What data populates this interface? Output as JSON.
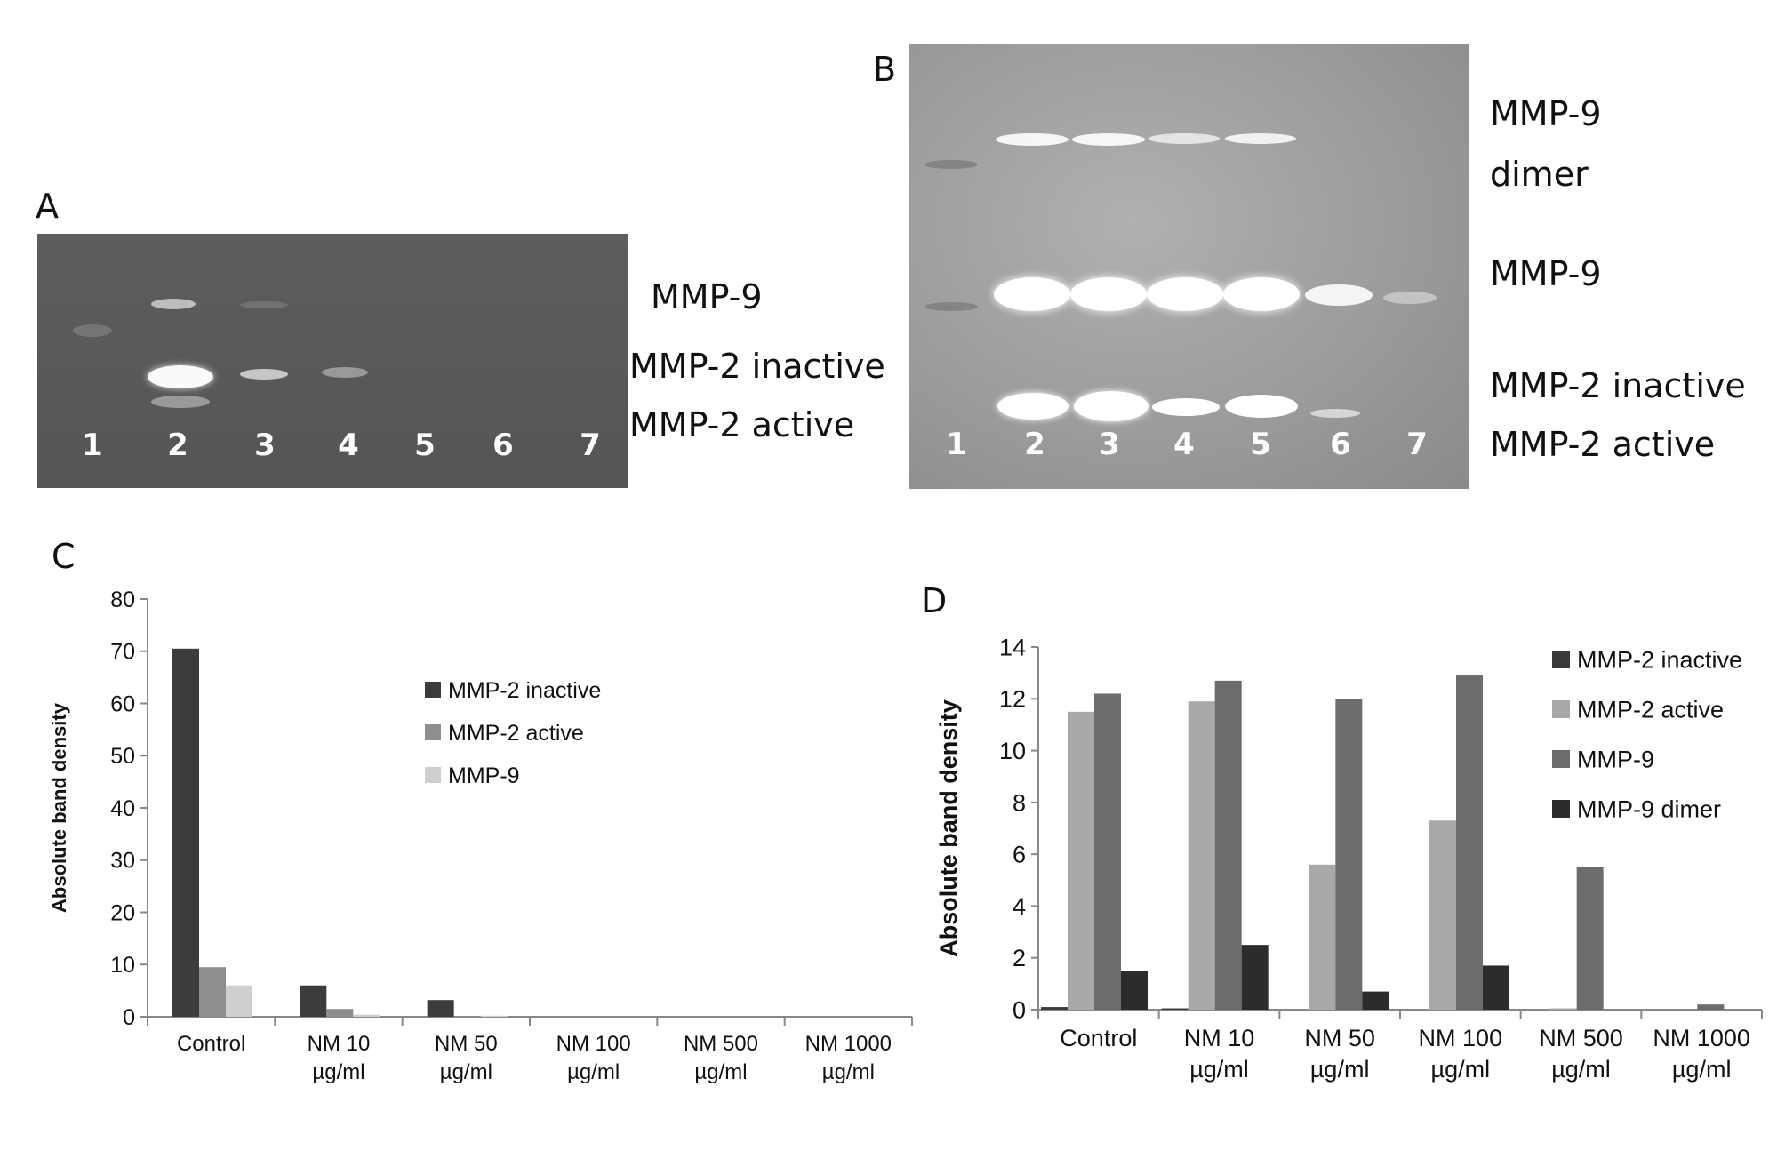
{
  "panelA": {
    "label": "A",
    "lanes": [
      "1",
      "2",
      "3",
      "4",
      "5",
      "6",
      "7"
    ],
    "band_labels": [
      "MMP-9",
      "MMP-2 inactive",
      "MMP-2 active"
    ]
  },
  "panelB": {
    "label": "B",
    "lanes": [
      "1",
      "2",
      "3",
      "4",
      "5",
      "6",
      "7"
    ],
    "band_labels": [
      "MMP-9",
      "dimer",
      "MMP-9",
      "MMP-2 inactive",
      "MMP-2 active"
    ]
  },
  "panelC": {
    "label": "C"
  },
  "panelD": {
    "label": "D"
  },
  "chart_data": [
    {
      "type": "bar",
      "panel": "C",
      "categories": [
        [
          "Control"
        ],
        [
          "NM 10",
          "µg/ml"
        ],
        [
          "NM 50",
          "µg/ml"
        ],
        [
          "NM 100",
          "µg/ml"
        ],
        [
          "NM 500",
          "µg/ml"
        ],
        [
          "NM 1000",
          "µg/ml"
        ]
      ],
      "ylabel": "Absolute band density",
      "ylim": [
        0,
        80
      ],
      "yticks": [
        0,
        10,
        20,
        30,
        40,
        50,
        60,
        70,
        80
      ],
      "legend": "right",
      "series": [
        {
          "name": "MMP-2 inactive",
          "color": "#3c3c3c",
          "values": [
            70.5,
            6,
            3.2,
            0,
            0,
            0
          ]
        },
        {
          "name": "MMP-2 active",
          "color": "#8e8e8e",
          "values": [
            9.5,
            1.5,
            0.1,
            0,
            0,
            0
          ]
        },
        {
          "name": "MMP-9",
          "color": "#cfcfcf",
          "values": [
            6,
            0.4,
            0.2,
            0,
            0,
            0
          ]
        }
      ]
    },
    {
      "type": "bar",
      "panel": "D",
      "categories": [
        [
          "Control"
        ],
        [
          "NM 10",
          "µg/ml"
        ],
        [
          "NM 50",
          "µg/ml"
        ],
        [
          "NM 100",
          "µg/ml"
        ],
        [
          "NM 500",
          "µg/ml"
        ],
        [
          "NM 1000",
          "µg/ml"
        ]
      ],
      "ylabel": "Absolute band density",
      "ylim": [
        0,
        14
      ],
      "yticks": [
        0,
        2,
        4,
        6,
        8,
        10,
        12,
        14
      ],
      "legend": "right",
      "series": [
        {
          "name": "MMP-2 inactive",
          "color": "#3a3a3a",
          "values": [
            0.1,
            0.05,
            0,
            0,
            0,
            0
          ]
        },
        {
          "name": "MMP-2 active",
          "color": "#a8a8a8",
          "values": [
            11.5,
            11.9,
            5.6,
            7.3,
            0.05,
            0
          ]
        },
        {
          "name": "MMP-9",
          "color": "#6c6c6c",
          "values": [
            12.2,
            12.7,
            12,
            12.9,
            5.5,
            0.2
          ]
        },
        {
          "name": "MMP-9 dimer",
          "color": "#2c2c2c",
          "values": [
            1.5,
            2.5,
            0.7,
            1.7,
            0,
            0
          ]
        }
      ]
    }
  ]
}
